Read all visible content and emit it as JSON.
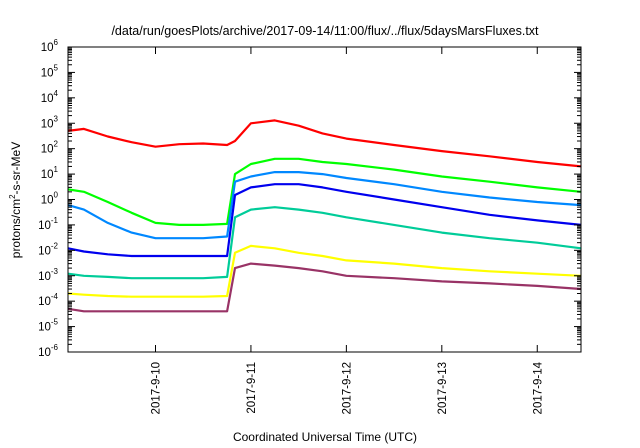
{
  "chart_data": {
    "type": "line",
    "title": "/data/run/goesPlots/archive/2017-09-14/11:00/flux/../flux/5daysMarsFluxes.txt",
    "xlabel": "Coordinated Universal Time (UTC)",
    "ylabel": {
      "prefix": "protons/cm",
      "sup": "2",
      "suffix": "-s-sr-MeV"
    },
    "yscale": "log",
    "ylim_exp": [
      -6,
      6
    ],
    "yticks": [
      {
        "base": "10",
        "exp": "6"
      },
      {
        "base": "10",
        "exp": "5"
      },
      {
        "base": "10",
        "exp": "4"
      },
      {
        "base": "10",
        "exp": "3"
      },
      {
        "base": "10",
        "exp": "2"
      },
      {
        "base": "10",
        "exp": "1"
      },
      {
        "base": "10",
        "exp": "0"
      },
      {
        "base": "10",
        "exp": "-1"
      },
      {
        "base": "10",
        "exp": "-2"
      },
      {
        "base": "10",
        "exp": "-3"
      },
      {
        "base": "10",
        "exp": "-4"
      },
      {
        "base": "10",
        "exp": "-5"
      },
      {
        "base": "10",
        "exp": "-6"
      }
    ],
    "xlim": [
      "2017-09-09 02:00",
      "2017-09-14 11:00"
    ],
    "xtick_labels": [
      "2017-9-10",
      "2017-9-11",
      "2017-9-12",
      "2017-9-13",
      "2017-9-14"
    ],
    "grid": false,
    "legend": "none",
    "series": [
      {
        "color": "#ff0000",
        "x": [
          "2017-09-09 02:00",
          "2017-09-09 06:00",
          "2017-09-09 12:00",
          "2017-09-09 18:00",
          "2017-09-10 00:00",
          "2017-09-10 06:00",
          "2017-09-10 12:00",
          "2017-09-10 18:00",
          "2017-09-10 20:00",
          "2017-09-11 00:00",
          "2017-09-11 06:00",
          "2017-09-11 12:00",
          "2017-09-11 18:00",
          "2017-09-12 00:00",
          "2017-09-12 12:00",
          "2017-09-13 00:00",
          "2017-09-13 12:00",
          "2017-09-14 00:00",
          "2017-09-14 11:00"
        ],
        "y": [
          500,
          600,
          300,
          180,
          120,
          150,
          160,
          140,
          200,
          1000,
          1300,
          800,
          400,
          250,
          140,
          80,
          50,
          30,
          20
        ]
      },
      {
        "color": "#00ff00",
        "x": [
          "2017-09-09 02:00",
          "2017-09-09 06:00",
          "2017-09-09 12:00",
          "2017-09-09 18:00",
          "2017-09-10 00:00",
          "2017-09-10 06:00",
          "2017-09-10 12:00",
          "2017-09-10 18:00",
          "2017-09-10 20:00",
          "2017-09-11 00:00",
          "2017-09-11 06:00",
          "2017-09-11 12:00",
          "2017-09-11 18:00",
          "2017-09-12 00:00",
          "2017-09-12 12:00",
          "2017-09-13 00:00",
          "2017-09-13 12:00",
          "2017-09-14 00:00",
          "2017-09-14 11:00"
        ],
        "y": [
          2.5,
          2,
          0.8,
          0.3,
          0.12,
          0.1,
          0.1,
          0.11,
          10,
          25,
          40,
          40,
          30,
          25,
          15,
          8,
          5,
          3,
          2
        ]
      },
      {
        "color": "#0088ff",
        "x": [
          "2017-09-09 02:00",
          "2017-09-09 06:00",
          "2017-09-09 12:00",
          "2017-09-09 18:00",
          "2017-09-10 00:00",
          "2017-09-10 06:00",
          "2017-09-10 12:00",
          "2017-09-10 18:00",
          "2017-09-10 20:00",
          "2017-09-11 00:00",
          "2017-09-11 06:00",
          "2017-09-11 12:00",
          "2017-09-11 18:00",
          "2017-09-12 00:00",
          "2017-09-12 12:00",
          "2017-09-13 00:00",
          "2017-09-13 12:00",
          "2017-09-14 00:00",
          "2017-09-14 11:00"
        ],
        "y": [
          0.6,
          0.4,
          0.12,
          0.05,
          0.03,
          0.03,
          0.03,
          0.035,
          5,
          8,
          12,
          12,
          10,
          7,
          4,
          2,
          1.2,
          0.8,
          0.6
        ]
      },
      {
        "color": "#0000ee",
        "x": [
          "2017-09-09 02:00",
          "2017-09-09 06:00",
          "2017-09-09 12:00",
          "2017-09-09 18:00",
          "2017-09-10 00:00",
          "2017-09-10 06:00",
          "2017-09-10 12:00",
          "2017-09-10 18:00",
          "2017-09-10 20:00",
          "2017-09-11 00:00",
          "2017-09-11 06:00",
          "2017-09-11 12:00",
          "2017-09-11 18:00",
          "2017-09-12 00:00",
          "2017-09-12 12:00",
          "2017-09-13 00:00",
          "2017-09-13 12:00",
          "2017-09-14 00:00",
          "2017-09-14 11:00"
        ],
        "y": [
          0.012,
          0.009,
          0.007,
          0.006,
          0.006,
          0.006,
          0.006,
          0.006,
          1.5,
          3,
          4,
          4,
          3,
          2,
          1,
          0.5,
          0.25,
          0.15,
          0.1
        ]
      },
      {
        "color": "#00cc99",
        "x": [
          "2017-09-09 02:00",
          "2017-09-09 06:00",
          "2017-09-09 12:00",
          "2017-09-09 18:00",
          "2017-09-10 00:00",
          "2017-09-10 06:00",
          "2017-09-10 12:00",
          "2017-09-10 18:00",
          "2017-09-10 20:00",
          "2017-09-11 00:00",
          "2017-09-11 06:00",
          "2017-09-11 12:00",
          "2017-09-11 18:00",
          "2017-09-12 00:00",
          "2017-09-12 12:00",
          "2017-09-13 00:00",
          "2017-09-13 12:00",
          "2017-09-14 00:00",
          "2017-09-14 11:00"
        ],
        "y": [
          0.0012,
          0.001,
          0.0009,
          0.0008,
          0.0008,
          0.0008,
          0.0008,
          0.0009,
          0.2,
          0.4,
          0.5,
          0.4,
          0.3,
          0.2,
          0.1,
          0.05,
          0.03,
          0.02,
          0.012
        ]
      },
      {
        "color": "#ffff00",
        "x": [
          "2017-09-09 02:00",
          "2017-09-09 06:00",
          "2017-09-09 12:00",
          "2017-09-09 18:00",
          "2017-09-10 00:00",
          "2017-09-10 06:00",
          "2017-09-10 12:00",
          "2017-09-10 18:00",
          "2017-09-10 20:00",
          "2017-09-11 00:00",
          "2017-09-11 06:00",
          "2017-09-11 12:00",
          "2017-09-11 18:00",
          "2017-09-12 00:00",
          "2017-09-12 12:00",
          "2017-09-13 00:00",
          "2017-09-13 12:00",
          "2017-09-14 00:00",
          "2017-09-14 11:00"
        ],
        "y": [
          0.0002,
          0.00018,
          0.00016,
          0.00015,
          0.00015,
          0.00015,
          0.00015,
          0.00016,
          0.008,
          0.015,
          0.012,
          0.008,
          0.006,
          0.004,
          0.003,
          0.002,
          0.0015,
          0.0012,
          0.001
        ]
      },
      {
        "color": "#993366",
        "x": [
          "2017-09-09 02:00",
          "2017-09-09 06:00",
          "2017-09-09 12:00",
          "2017-09-09 18:00",
          "2017-09-10 00:00",
          "2017-09-10 06:00",
          "2017-09-10 12:00",
          "2017-09-10 18:00",
          "2017-09-10 20:00",
          "2017-09-11 00:00",
          "2017-09-11 06:00",
          "2017-09-11 12:00",
          "2017-09-11 18:00",
          "2017-09-12 00:00",
          "2017-09-12 12:00",
          "2017-09-13 00:00",
          "2017-09-13 12:00",
          "2017-09-14 00:00",
          "2017-09-14 11:00"
        ],
        "y": [
          5e-05,
          4e-05,
          4e-05,
          4e-05,
          4e-05,
          4e-05,
          4e-05,
          4e-05,
          0.002,
          0.003,
          0.0025,
          0.002,
          0.0015,
          0.001,
          0.0008,
          0.0006,
          0.0005,
          0.0004,
          0.0003
        ]
      }
    ]
  }
}
